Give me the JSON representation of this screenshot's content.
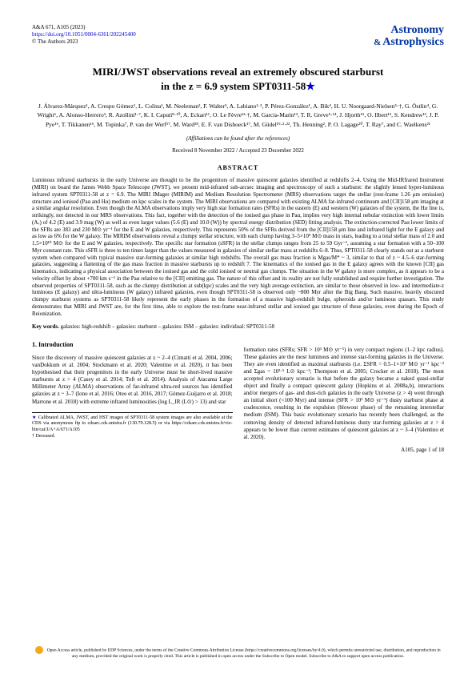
{
  "header": {
    "journal_ref": "A&A 671, A105 (2023)",
    "doi": "https://doi.org/10.1051/0004-6361/202245400",
    "copyright": "© The Authors 2023",
    "journal_name_1": "Astronomy",
    "journal_name_2": "Astrophysics",
    "amp": "&"
  },
  "title": {
    "line1": "MIRI/JWST observations reveal an extremely obscured starburst",
    "line2": "in the z = 6.9 system SPT0311-58",
    "star": "★"
  },
  "authors": "J. Álvarez-Márquez¹, A. Crespo Gómez¹, L. Colina¹, M. Neeleman², F. Walter², A. Labiano¹·³, P. Pérez-González¹, A. Bik⁴, H. U. Noorgaard-Nielsen⁵·†, G. Östlin⁴, G. Wright⁶, A. Alonso-Herrero³, R. Azollini¹·⁷, K. I. Caputi⁸·¹⁰, A. Eckart¹¹, O. Le Fèvre¹²·†, M. García-Marín¹³, T. R. Greve⁵·¹⁴, J. Hjorth¹⁵, O. Ilbert¹², S. Kendrew¹³, J. P. Pye¹⁶, T. Tikkanen¹⁶, M. Topinka⁷, P. van der Werf¹⁷, M. Ward¹⁸, E. F. van Dishoeck¹⁷, M. Güdel¹⁹·²·²², Th. Henning², P. O. Lagage²⁰, T. Ray⁷, and C. Waelkens²¹",
  "affiliation_note": "(Affiliations can be found after the references)",
  "dates": "Received 8 November 2022 / Accepted 23 December 2022",
  "abstract_heading": "ABSTRACT",
  "abstract": "Luminous infrared starbursts in the early Universe are thought to be the progenitors of massive quiescent galaxies identified at redshifts 2–4. Using the Mid-IRfrared Instrument (MIRI) on board the James Webb Space Telescope (JWST), we present mid-infrared sub-arcsec imaging and spectroscopy of such a starburst: the slightly lensed hyper-luminous infrared system SPT0311-58 at z = 6.9. The MIRI IMager (MIRIM) and Medium Resolution Spectrometer (MRS) observations target the stellar (rest-frame 1.26 μm emission) structure and ionised (Paα and Hα) medium on kpc scales in the system. The MIRI observations are compared with existing ALMA far-infrared continuum and [CII]158 μm imaging at a similar angular resolution. Even though the ALMA observations imply very high star formation rates (SFRs) in the eastern (E) and western (W) galaxies of the system, the Hα line is, strikingly, not detected in our MRS observations. This fact, together with the detection of the ionised gas phase in Paα, implies very high internal nebular extinction with lower limits (Aᵥ) of 4.2 (E) and 3.9 mag (W) as well as even larger values (5.6 (E) and 10.0 (W)) by spectral energy distribution (SED) fitting analysis. The extinction-corrected Paα lower limits of the SFRs are 383 and 230 M⊙ yr⁻¹ for the E and W galaxies, respectively. This represents 50% of the SFRs derived from the [CII]158 μm line and infrared light for the E galaxy and as low as 6% for the W galaxy. The MIRIM observations reveal a clumpy stellar structure, with each clump having 3–5×10⁹ M⊙ mass in stars, leading to a total stellar mass of 2.0 and 1.5×10¹⁰ M⊙ for the E and W galaxies, respectively. The specific star formation (sSFR) in the stellar clumps ranges from 25 to 59 Gyr⁻¹, assuming a star formation with a 50–100 Myr constant rate. This sSFR is three to ten times larger than the values measured in galaxies of similar stellar mass at redshifts 6–8. Thus, SPT0311-58 clearly stands out as a starburst system when compared with typical massive star-forming galaxies at similar high redshifts. The overall gas mass fraction is Mgas/M* ~ 3, similar to that of z ~ 4.5–6 star-forming galaxies, suggesting a flattening of the gas mass fraction in massive starbursts up to redshift 7. The kinematics of the ionised gas in the E galaxy agrees with the known [CII] gas kinematics, indicating a physical association between the ionised gas and the cold ionised or neutral gas clumps. The situation in the W galaxy is more complex, as it appears to be a velocity offset by about +700 km s⁻¹ in the Paα relative to the [CII] emitting gas. The nature of this offset and its reality are not fully established and require further investigation. The observed properties of SPT0311-58, such as the clumpy distribution at sub(kpc) scales and the very high average extinction, are similar to those observed in low- and intermediate-z luminous (E galaxy) and ultra-luminous (W galaxy) infrared galaxies, even though SPT0311-58 is observed only ~800 Myr after the Big Bang. Such massive, heavily obscured clumpy starburst systems as SPT0311-58 likely represent the early phases in the formation of a massive high-redshift bulge, spheroids and/or luminous quasars. This study demonstrates that MIRI and JWST are, for the first time, able to explore the rest-frame near-infrared stellar and ionised gas structure of these galaxies, even during the Epoch of Reionization.",
  "keywords_label": "Key words.",
  "keywords": "galaxies: high-redshift – galaxies: starburst – galaxies: ISM – galaxies: individual: SPT0311-58",
  "section1_heading": "1. Introduction",
  "col1_p1": "Since the discovery of massive quiescent galaxies at z ~ 2–4 (Cimatti et al. 2004, 2006; vanDokkum et al. 2004; Stockmann et al. 2020; Valentino et al. 2020), it has been hypothesised that their progenitors in the early Universe must be short-lived massive starbursts at z > 4 (Casey et al. 2014; Toft et al. 2014). Analysis of Atacama Large Millimeter Array (ALMA) observations of far-infrared ultra-red sources has identified galaxies at z ~ 3–7 (Iono et al. 2016; Oteo et al. 2016, 2017; Gómez-Guijarro et al. 2018; Marrone et al. 2018) with extreme infrared luminosities (log L_IR (L⊙) > 13) and star",
  "col2_p1": "formation rates (SFRs; SFR > 10³ M⊙ yr⁻¹) in very compact regions (1–2 kpc radius). These galaxies are the most luminous and intense star-forming galaxies in the Universe. They are even identified as maximal starbursts (i.e. ΣSFR = 0.5–1×10³ M⊙ yr⁻¹ kpc⁻² and Σgas = 10³·⁵ L⊙ kpc⁻²; Thompson et al. 2005; Crocker et al. 2018). The most accepted evolutionary scenario is that before the galaxy became a naked quasi-stellar object and finally a compact quiescent galaxy (Hopkins et al. 2008a,b), interactions and/or mergers of gas- and dust-rich galaxies in the early Universe (z > 4) went through an initial short (<100 Myr) and intense (SFR > 10³ M⊙ yr⁻¹) dusty starburst phase at coalescence, resulting in the expulsion (blowout phase) of the remaining interstellar medium (ISM). This basic evolutionary scenario has recently been challenged, as the comoving density of detected infrared-luminous dusty star-forming galaxies at z > 4 appears to be lower than current estimates of quiescent galaxies at z ~ 3–4 (Valentino et al. 2020).",
  "footnote_star": "★",
  "footnote_text": "Calibrated ALMA, JWST, and HST images of SPT0311-58 system images are also available at the CDS via anonymous ftp to cdsarc.cds.unistra.fr (130.79.128.5) or via https://cdsarc.cds.unistra.fr/viz-bin/cat/J/A+A/671/A105",
  "footnote_url": "https://cdsarc.cds.unistra.fr/viz-bin/cat/J/A+A/671/A105",
  "footnote_cds": "cdsarc.cds.unistra.fr",
  "footnote_ip": "130.79.128.5",
  "footnote_dagger": "† Deceased.",
  "page_num": "A105, page 1 of 18",
  "page_total": "18",
  "footer_text": "Open Access article, published by EDP Sciences, under the terms of the Creative Commons Attribution License (https://creativecommons.org/licenses/by/4.0), which permits unrestricted use, distribution, and reproduction in any medium, provided the original work is properly cited. This article is published in open access under the Subscribe to Open model. Subscribe to A&A to support open access publication.",
  "footer_url": "https://creativecommons.org/licenses/by/4.0",
  "footer_s2o": "Subscribe to Open model",
  "colors": {
    "link": "#0000cc",
    "journal": "#0033a0",
    "oa_icon": "#f4a81d"
  }
}
